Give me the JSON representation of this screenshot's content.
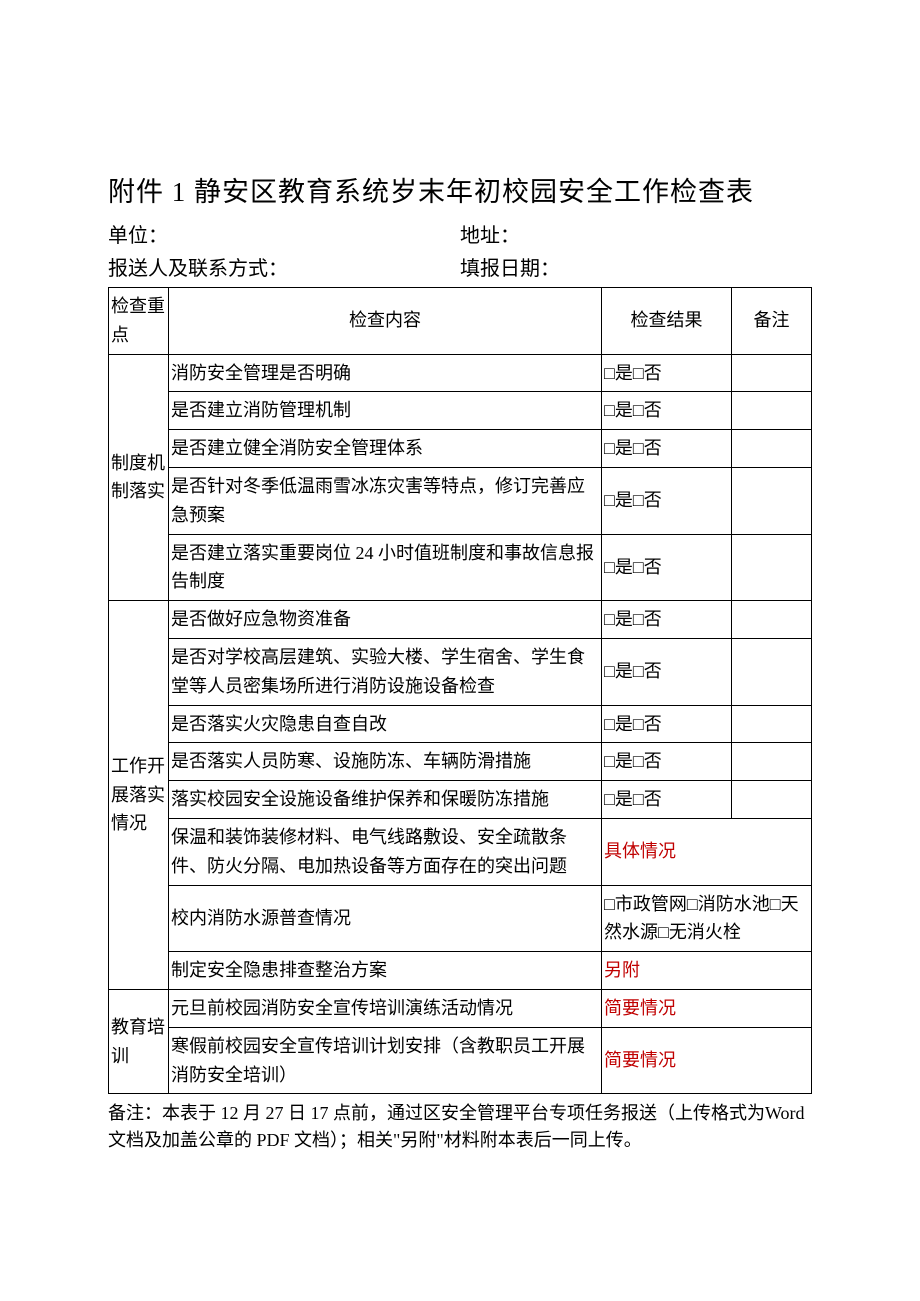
{
  "header": {
    "title": "附件 1 静安区教育系统岁末年初校园安全工作检查表",
    "unit_label": "单位：",
    "address_label": "地址：",
    "reporter_label": "报送人及联系方式：",
    "fill_date_label": "填报日期："
  },
  "table": {
    "col_category": "检查重点",
    "col_content": "检查内容",
    "col_result": "检查结果",
    "col_note": "备注",
    "yes_no": "□是□否",
    "water_options": "□市政管网□消防水池□天然水源□无消火栓",
    "additional": "另附",
    "brief": "简要情况",
    "detail": "具体情况",
    "sections": [
      {
        "name": "制度机制落实",
        "items": [
          {
            "text": "消防安全管理是否明确",
            "result": "yes_no"
          },
          {
            "text": "是否建立消防管理机制",
            "result": "yes_no"
          },
          {
            "text": "是否建立健全消防安全管理体系",
            "result": "yes_no"
          },
          {
            "text": "是否针对冬季低温雨雪冰冻灾害等特点，修订完善应急预案",
            "result": "yes_no"
          },
          {
            "text": "是否建立落实重要岗位 24 小时值班制度和事故信息报告制度",
            "result": "yes_no"
          }
        ]
      },
      {
        "name": "工作开展落实情况",
        "items": [
          {
            "text": "是否做好应急物资准备",
            "result": "yes_no"
          },
          {
            "text": "是否对学校高层建筑、实验大楼、学生宿舍、学生食堂等人员密集场所进行消防设施设备检查",
            "result": "yes_no"
          },
          {
            "text": "是否落实火灾隐患自查自改",
            "result": "yes_no"
          },
          {
            "text": "是否落实人员防寒、设施防冻、车辆防滑措施",
            "result": "yes_no"
          },
          {
            "text": "落实校园安全设施设备维护保养和保暖防冻措施",
            "result": "yes_no"
          },
          {
            "text": "保温和装饰装修材料、电气线路敷设、安全疏散条件、防火分隔、电加热设备等方面存在的突出问题",
            "result": "detail"
          },
          {
            "text": "校内消防水源普查情况",
            "result": "water"
          },
          {
            "text": "制定安全隐患排查整治方案",
            "result": "additional"
          }
        ]
      },
      {
        "name": "教育培训",
        "items": [
          {
            "text": "元旦前校园消防安全宣传培训演练活动情况",
            "result": "brief"
          },
          {
            "text": "寒假前校园安全宣传培训计划安排（含教职员工开展消防安全培训）",
            "result": "brief"
          }
        ]
      }
    ]
  },
  "footnote": "备注：本表于 12 月 27 日 17 点前，通过区安全管理平台专项任务报送（上传格式为Word 文档及加盖公章的 PDF 文档）；相关\"另附\"材料附本表后一同上传。"
}
